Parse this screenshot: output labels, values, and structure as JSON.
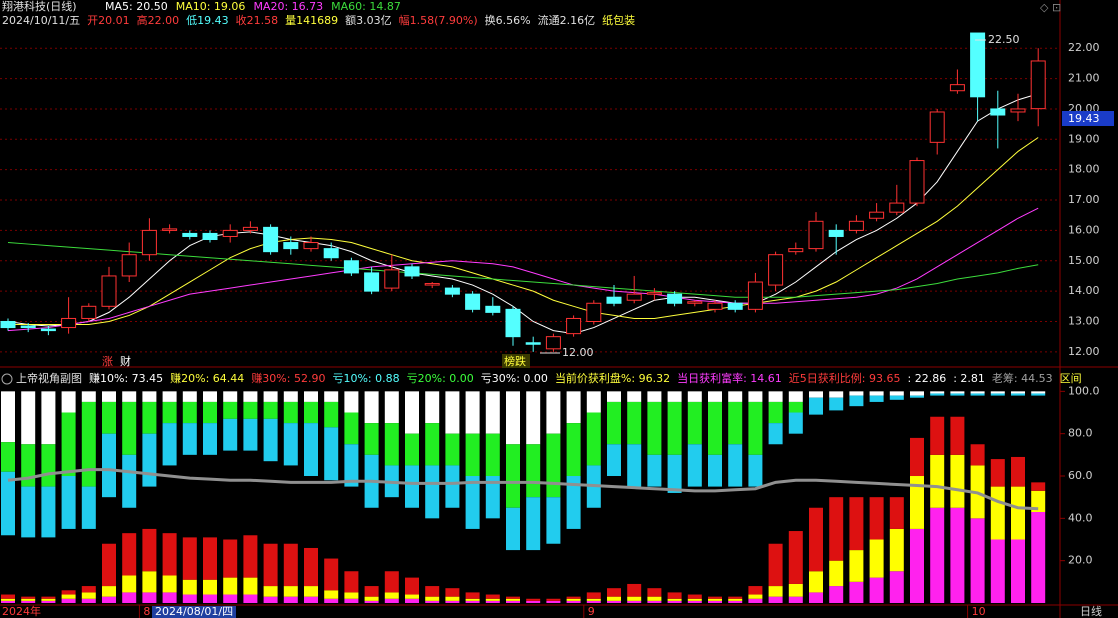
{
  "chart_data": [
    {
      "type": "candlestick",
      "title": "翔港科技(日线)",
      "info": [
        {
          "text": "2024/10/11/五",
          "color": "#e0e0e0"
        },
        {
          "text": "开20.01",
          "color": "#ff3c3c"
        },
        {
          "text": "高22.00",
          "color": "#ff3c3c"
        },
        {
          "text": "低19.43",
          "color": "#54ffff"
        },
        {
          "text": "收21.58",
          "color": "#ff3c3c"
        },
        {
          "text": "量141689",
          "color": "#ffff3c"
        },
        {
          "text": "额3.03亿",
          "color": "#e0e0e0"
        },
        {
          "text": "幅1.58(7.90%)",
          "color": "#ff3c3c"
        },
        {
          "text": "换6.56%",
          "color": "#e0e0e0"
        },
        {
          "text": "流通2.16亿",
          "color": "#e0e0e0"
        },
        {
          "text": "纸包装",
          "color": "#ffff3c"
        }
      ],
      "up_color": "#ff3232",
      "down_color": "#54ffff",
      "open": [
        13.0,
        12.85,
        12.75,
        12.8,
        13.1,
        13.5,
        14.5,
        15.2,
        16.0,
        15.9,
        15.9,
        15.8,
        16.0,
        16.1,
        15.6,
        15.4,
        15.4,
        15.0,
        14.6,
        14.1,
        14.8,
        14.2,
        14.1,
        13.9,
        13.5,
        13.4,
        12.3,
        12.1,
        12.6,
        13.0,
        13.8,
        13.7,
        13.9,
        13.9,
        13.6,
        13.4,
        13.6,
        13.4,
        14.2,
        15.3,
        15.4,
        16.0,
        16.0,
        16.4,
        16.6,
        16.9,
        18.9,
        20.6,
        22.5,
        20.0,
        19.9,
        20.01
      ],
      "high": [
        13.1,
        12.95,
        12.85,
        13.8,
        13.6,
        14.8,
        15.6,
        16.4,
        16.2,
        16.0,
        16.0,
        16.2,
        16.3,
        16.2,
        15.8,
        15.8,
        15.6,
        15.1,
        14.8,
        15.2,
        14.9,
        14.3,
        14.2,
        14.0,
        13.8,
        13.5,
        12.5,
        12.6,
        13.2,
        13.7,
        14.2,
        14.5,
        14.1,
        14.0,
        13.7,
        13.7,
        13.7,
        14.6,
        15.3,
        15.6,
        16.6,
        16.2,
        16.5,
        16.9,
        17.5,
        18.4,
        20.0,
        21.3,
        22.5,
        20.6,
        20.5,
        22.0
      ],
      "low": [
        12.7,
        12.65,
        12.55,
        12.6,
        13.0,
        13.4,
        14.3,
        15.0,
        15.9,
        15.7,
        15.6,
        15.6,
        15.9,
        15.2,
        15.2,
        15.3,
        15.0,
        14.5,
        13.9,
        14.0,
        14.4,
        14.1,
        13.8,
        13.3,
        13.2,
        12.2,
        12.0,
        12.0,
        12.5,
        12.9,
        13.5,
        13.6,
        13.7,
        13.5,
        13.5,
        13.3,
        13.3,
        13.3,
        14.0,
        15.2,
        15.3,
        15.2,
        15.9,
        16.3,
        16.5,
        16.8,
        18.5,
        20.5,
        19.6,
        18.7,
        19.6,
        19.43
      ],
      "close": [
        12.8,
        12.8,
        12.7,
        13.1,
        13.5,
        14.5,
        15.2,
        16.0,
        16.05,
        15.8,
        15.7,
        16.0,
        16.1,
        15.3,
        15.4,
        15.6,
        15.1,
        14.6,
        14.0,
        14.7,
        14.5,
        14.25,
        13.9,
        13.4,
        13.3,
        12.5,
        12.25,
        12.5,
        13.1,
        13.6,
        13.6,
        13.9,
        13.95,
        13.6,
        13.65,
        13.6,
        13.4,
        14.3,
        15.2,
        15.4,
        16.3,
        15.8,
        16.3,
        16.6,
        16.9,
        18.3,
        19.9,
        20.8,
        20.4,
        19.8,
        20.0,
        21.58
      ],
      "series": [
        {
          "name": "MA5: 20.50",
          "color": "#ffffff",
          "values": [
            13.0,
            12.9,
            12.85,
            12.9,
            13.0,
            13.3,
            13.8,
            14.4,
            15.0,
            15.5,
            15.8,
            15.9,
            15.95,
            15.85,
            15.7,
            15.6,
            15.5,
            15.3,
            15.0,
            14.8,
            14.6,
            14.5,
            14.4,
            14.2,
            13.9,
            13.5,
            13.0,
            12.7,
            12.6,
            12.8,
            13.1,
            13.4,
            13.7,
            13.8,
            13.8,
            13.7,
            13.6,
            13.6,
            13.9,
            14.3,
            14.8,
            15.3,
            15.7,
            16.0,
            16.4,
            16.9,
            17.6,
            18.6,
            19.6,
            20.0,
            20.3,
            20.5
          ]
        },
        {
          "name": "MA10: 19.06",
          "color": "#ffff3c",
          "values": [
            12.9,
            12.9,
            12.9,
            12.9,
            12.9,
            13.0,
            13.2,
            13.5,
            13.9,
            14.3,
            14.7,
            15.1,
            15.4,
            15.6,
            15.7,
            15.75,
            15.7,
            15.6,
            15.4,
            15.2,
            15.0,
            14.9,
            14.8,
            14.6,
            14.4,
            14.2,
            14.0,
            13.7,
            13.5,
            13.3,
            13.2,
            13.1,
            13.1,
            13.2,
            13.3,
            13.4,
            13.5,
            13.6,
            13.7,
            13.8,
            14.0,
            14.3,
            14.7,
            15.1,
            15.5,
            15.9,
            16.3,
            16.8,
            17.4,
            18.0,
            18.6,
            19.06
          ]
        },
        {
          "name": "MA20: 16.73",
          "color": "#ff3cff",
          "values": [
            12.7,
            12.75,
            12.8,
            12.9,
            13.0,
            13.1,
            13.3,
            13.5,
            13.7,
            13.9,
            14.0,
            14.1,
            14.2,
            14.3,
            14.4,
            14.5,
            14.6,
            14.7,
            14.8,
            14.85,
            14.9,
            14.95,
            15.0,
            14.95,
            14.9,
            14.8,
            14.6,
            14.4,
            14.2,
            14.1,
            14.0,
            13.95,
            13.9,
            13.8,
            13.7,
            13.65,
            13.6,
            13.6,
            13.6,
            13.65,
            13.7,
            13.75,
            13.8,
            13.9,
            14.1,
            14.4,
            14.8,
            15.2,
            15.6,
            16.0,
            16.4,
            16.73
          ]
        },
        {
          "name": "MA60: 14.87",
          "color": "#3cdc3c",
          "values": [
            15.6,
            15.55,
            15.5,
            15.45,
            15.4,
            15.35,
            15.3,
            15.25,
            15.2,
            15.15,
            15.1,
            15.05,
            15.0,
            14.95,
            14.9,
            14.85,
            14.8,
            14.75,
            14.7,
            14.65,
            14.6,
            14.55,
            14.5,
            14.45,
            14.4,
            14.35,
            14.3,
            14.25,
            14.2,
            14.15,
            14.1,
            14.05,
            14.0,
            13.95,
            13.9,
            13.85,
            13.8,
            13.8,
            13.8,
            13.8,
            13.85,
            13.9,
            13.95,
            14.0,
            14.05,
            14.15,
            14.25,
            14.4,
            14.5,
            14.6,
            14.75,
            14.87
          ]
        }
      ],
      "ylim": [
        11.6,
        22.6
      ],
      "yticks": [
        {
          "value": 12,
          "label": "12.00"
        },
        {
          "value": 13,
          "label": "13.00"
        },
        {
          "value": 14,
          "label": "14.00"
        },
        {
          "value": 15,
          "label": "15.00"
        },
        {
          "value": 16,
          "label": "16.00"
        },
        {
          "value": 17,
          "label": "17.00"
        },
        {
          "value": 18,
          "label": "18.00"
        },
        {
          "value": 19,
          "label": "19.00"
        },
        {
          "value": 20,
          "label": "20.00"
        },
        {
          "value": 21,
          "label": "21.00"
        },
        {
          "value": 22,
          "label": "22.00"
        }
      ],
      "grid": true,
      "high_label": "22.50",
      "low_label": "12.00",
      "price_tag": "19.43",
      "tags": [
        "涨",
        "财",
        "榜跌"
      ]
    },
    {
      "type": "stacked-bar",
      "title": "上帝视角副图",
      "stats": [
        {
          "text": "赚10%: 73.45",
          "color": "#ffffff"
        },
        {
          "text": "赚20%: 64.44",
          "color": "#ffff3c"
        },
        {
          "text": "赚30%: 52.90",
          "color": "#ff3c3c"
        },
        {
          "text": "亏10%: 0.88",
          "color": "#54ffff"
        },
        {
          "text": "亏20%: 0.00",
          "color": "#3cff3c"
        },
        {
          "text": "亏30%: 0.00",
          "color": "#ffffff"
        },
        {
          "text": "当前价获利盘%: 96.32",
          "color": "#ffff3c"
        },
        {
          "text": "当日获利富率: 14.61",
          "color": "#ff3cff"
        },
        {
          "text": "近5日获利比例: 93.65",
          "color": "#ff3c3c"
        },
        {
          "text": ": 22.86",
          "color": "#ffffff"
        },
        {
          "text": ": 2.81",
          "color": "#ffffff"
        },
        {
          "text": "老筹: 44.53",
          "color": "#a0a0a0"
        },
        {
          "text": "区间",
          "color": "#ffff3c"
        }
      ],
      "categories": [
        "2024年",
        null,
        null,
        null,
        null,
        null,
        null,
        "8",
        null,
        null,
        null,
        null,
        null,
        null,
        null,
        null,
        null,
        null,
        null,
        null,
        null,
        null,
        null,
        null,
        null,
        null,
        null,
        null,
        null,
        "9",
        null,
        null,
        null,
        null,
        null,
        null,
        null,
        null,
        null,
        null,
        null,
        null,
        null,
        null,
        null,
        null,
        null,
        null,
        "10",
        null,
        null,
        null
      ],
      "cursor_label": "2024/08/01/四",
      "period": "日线",
      "series": [
        {
          "color": "#ffffff",
          "stack": "down",
          "values": [
            24,
            25,
            25,
            10,
            5,
            5,
            5,
            5,
            5,
            5,
            5,
            5,
            5,
            5,
            5,
            5,
            5,
            10,
            15,
            15,
            20,
            15,
            20,
            20,
            20,
            25,
            25,
            20,
            15,
            10,
            5,
            5,
            5,
            5,
            5,
            5,
            5,
            5,
            5,
            5,
            3,
            3,
            2,
            2,
            2,
            2,
            1,
            1,
            1,
            1,
            1,
            1
          ]
        },
        {
          "color": "#22ee22",
          "stack": "down",
          "values": [
            14,
            20,
            20,
            30,
            40,
            15,
            25,
            15,
            10,
            10,
            10,
            8,
            8,
            8,
            10,
            10,
            12,
            15,
            15,
            20,
            15,
            20,
            15,
            20,
            20,
            30,
            25,
            30,
            25,
            25,
            20,
            20,
            25,
            25,
            20,
            25,
            20,
            25,
            10,
            5,
            0,
            0,
            0,
            0,
            0,
            0,
            0,
            0,
            0,
            0,
            0,
            0
          ]
        },
        {
          "color": "#22ccee",
          "stack": "down",
          "values": [
            30,
            24,
            24,
            25,
            20,
            30,
            25,
            25,
            20,
            15,
            15,
            15,
            15,
            20,
            20,
            25,
            25,
            20,
            25,
            15,
            20,
            25,
            20,
            25,
            20,
            20,
            25,
            22,
            25,
            20,
            15,
            20,
            15,
            18,
            20,
            15,
            20,
            15,
            10,
            10,
            8,
            6,
            5,
            3,
            2,
            1,
            1,
            1,
            1,
            1,
            1,
            1
          ]
        },
        {
          "color": "#ff22ee",
          "stack": "up",
          "values": [
            1,
            1,
            1,
            2,
            2,
            3,
            5,
            5,
            5,
            4,
            4,
            4,
            4,
            3,
            3,
            3,
            2,
            2,
            1,
            2,
            2,
            1,
            1,
            1,
            1,
            1,
            1,
            1,
            1,
            1,
            1,
            1,
            1,
            1,
            1,
            1,
            1,
            2,
            3,
            3,
            5,
            8,
            10,
            12,
            15,
            35,
            45,
            45,
            40,
            30,
            30,
            43
          ]
        },
        {
          "color": "#ffff00",
          "stack": "up",
          "values": [
            1,
            1,
            1,
            2,
            3,
            5,
            8,
            10,
            8,
            7,
            7,
            8,
            8,
            5,
            5,
            5,
            4,
            3,
            2,
            3,
            2,
            2,
            2,
            1,
            1,
            1,
            0,
            0,
            1,
            1,
            2,
            2,
            2,
            1,
            1,
            1,
            1,
            2,
            5,
            6,
            10,
            12,
            15,
            18,
            20,
            25,
            25,
            25,
            25,
            25,
            25,
            10
          ]
        },
        {
          "color": "#dd1111",
          "stack": "up",
          "values": [
            2,
            1,
            1,
            2,
            3,
            20,
            20,
            20,
            20,
            20,
            20,
            18,
            20,
            20,
            20,
            18,
            15,
            10,
            5,
            10,
            8,
            5,
            4,
            3,
            2,
            1,
            1,
            1,
            1,
            3,
            4,
            6,
            4,
            3,
            2,
            1,
            1,
            4,
            20,
            25,
            30,
            30,
            25,
            20,
            15,
            18,
            18,
            18,
            10,
            13,
            14,
            4
          ]
        },
        {
          "color": "#909090",
          "stack": "line",
          "values": [
            58,
            59,
            61,
            62,
            63,
            63,
            62,
            61,
            60,
            59,
            58.5,
            58,
            58,
            57.5,
            57,
            57,
            57,
            57.5,
            57.5,
            57,
            56.5,
            56.5,
            56.5,
            57,
            57,
            57,
            57,
            56.5,
            56,
            55.5,
            55,
            54.5,
            54,
            53.5,
            53,
            53,
            53.5,
            54,
            57,
            58,
            58,
            57.5,
            57,
            56.5,
            56,
            55.5,
            55,
            53.5,
            52,
            48,
            45,
            44.53
          ]
        }
      ],
      "ylim": [
        0,
        103
      ],
      "yticks": [
        {
          "value": 20,
          "label": "20.0"
        },
        {
          "value": 40,
          "label": "40.0"
        },
        {
          "value": 60,
          "label": "60.0"
        },
        {
          "value": 80,
          "label": "80.0"
        },
        {
          "value": 100,
          "label": "100.0"
        }
      ]
    }
  ]
}
